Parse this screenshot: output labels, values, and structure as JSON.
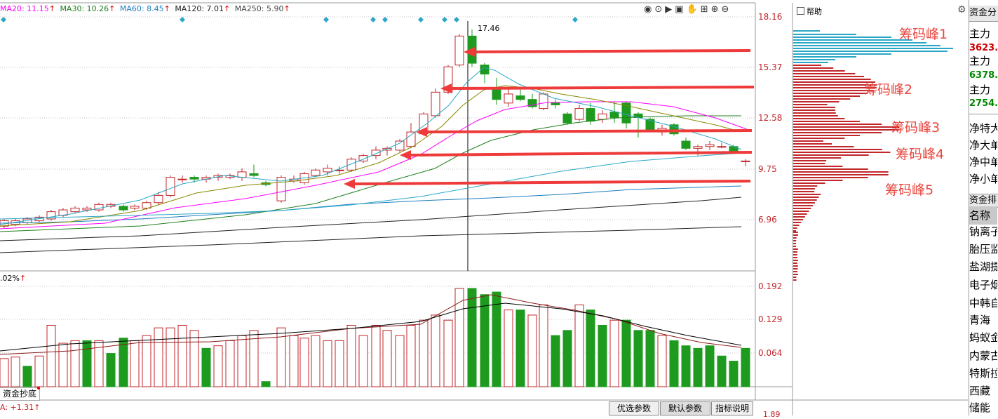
{
  "main_panel": {
    "ma_readouts": [
      {
        "label": "MA20: 11.15",
        "color": "#ff00ff"
      },
      {
        "label": "MA30: 10.26",
        "color": "#208020"
      },
      {
        "label": "MA60: 8.45",
        "color": "#1f7fbf"
      },
      {
        "label": "MA120: 7.01",
        "color": "#222222"
      },
      {
        "label": "MA250: 5.90",
        "color": "#444444"
      }
    ],
    "arrow_up": "↑",
    "price_ticks": [
      "18.16",
      "15.37",
      "12.58",
      "9.75",
      "6.96"
    ],
    "high_marker": "17.46"
  },
  "volume_panel": {
    "indicator_label": ".02%",
    "ticks": [
      "0.192",
      "0.129",
      "0.064"
    ]
  },
  "indicator_tab": {
    "label": "资金抄底"
  },
  "bottom_indicator": {
    "label": "A: +1.31",
    "partial_tick": "1.89"
  },
  "buttons": [
    {
      "label": "优选参数",
      "active": false
    },
    {
      "label": "默认参数",
      "active": true
    },
    {
      "label": "指标说明",
      "active": false
    }
  ],
  "chip_panel": {
    "help_label": "帮助",
    "peak_labels": [
      "筹码峰1",
      "筹码峰2",
      "筹码峰3",
      "筹码峰4",
      "筹码峰5"
    ]
  },
  "right_panel": {
    "header": "资金分",
    "rows": [
      {
        "text": "主力",
        "color": "#000000"
      },
      {
        "text": "3623.",
        "color": "#cc0000"
      },
      {
        "text": "主力",
        "color": "#000000"
      },
      {
        "text": "6378.",
        "color": "#008800"
      },
      {
        "text": "主力",
        "color": "#000000"
      },
      {
        "text": "2754.",
        "color": "#008800"
      }
    ],
    "net_rows": [
      "净特大",
      "净大单",
      "净中单",
      "净小单"
    ],
    "ranking_header": "资金排",
    "name_header": "名称",
    "stocks": [
      "钠离子",
      "胎压监",
      "盐湖提",
      "电子烟",
      "中韩自",
      "青海",
      "蚂蚁金",
      "内蒙古",
      "特斯拉",
      "西藏",
      "储能"
    ]
  },
  "colors": {
    "up": "#c0262a",
    "down": "#1e9a1e",
    "arrow": "#ee3a3a",
    "grid": "#c7c7c7"
  }
}
